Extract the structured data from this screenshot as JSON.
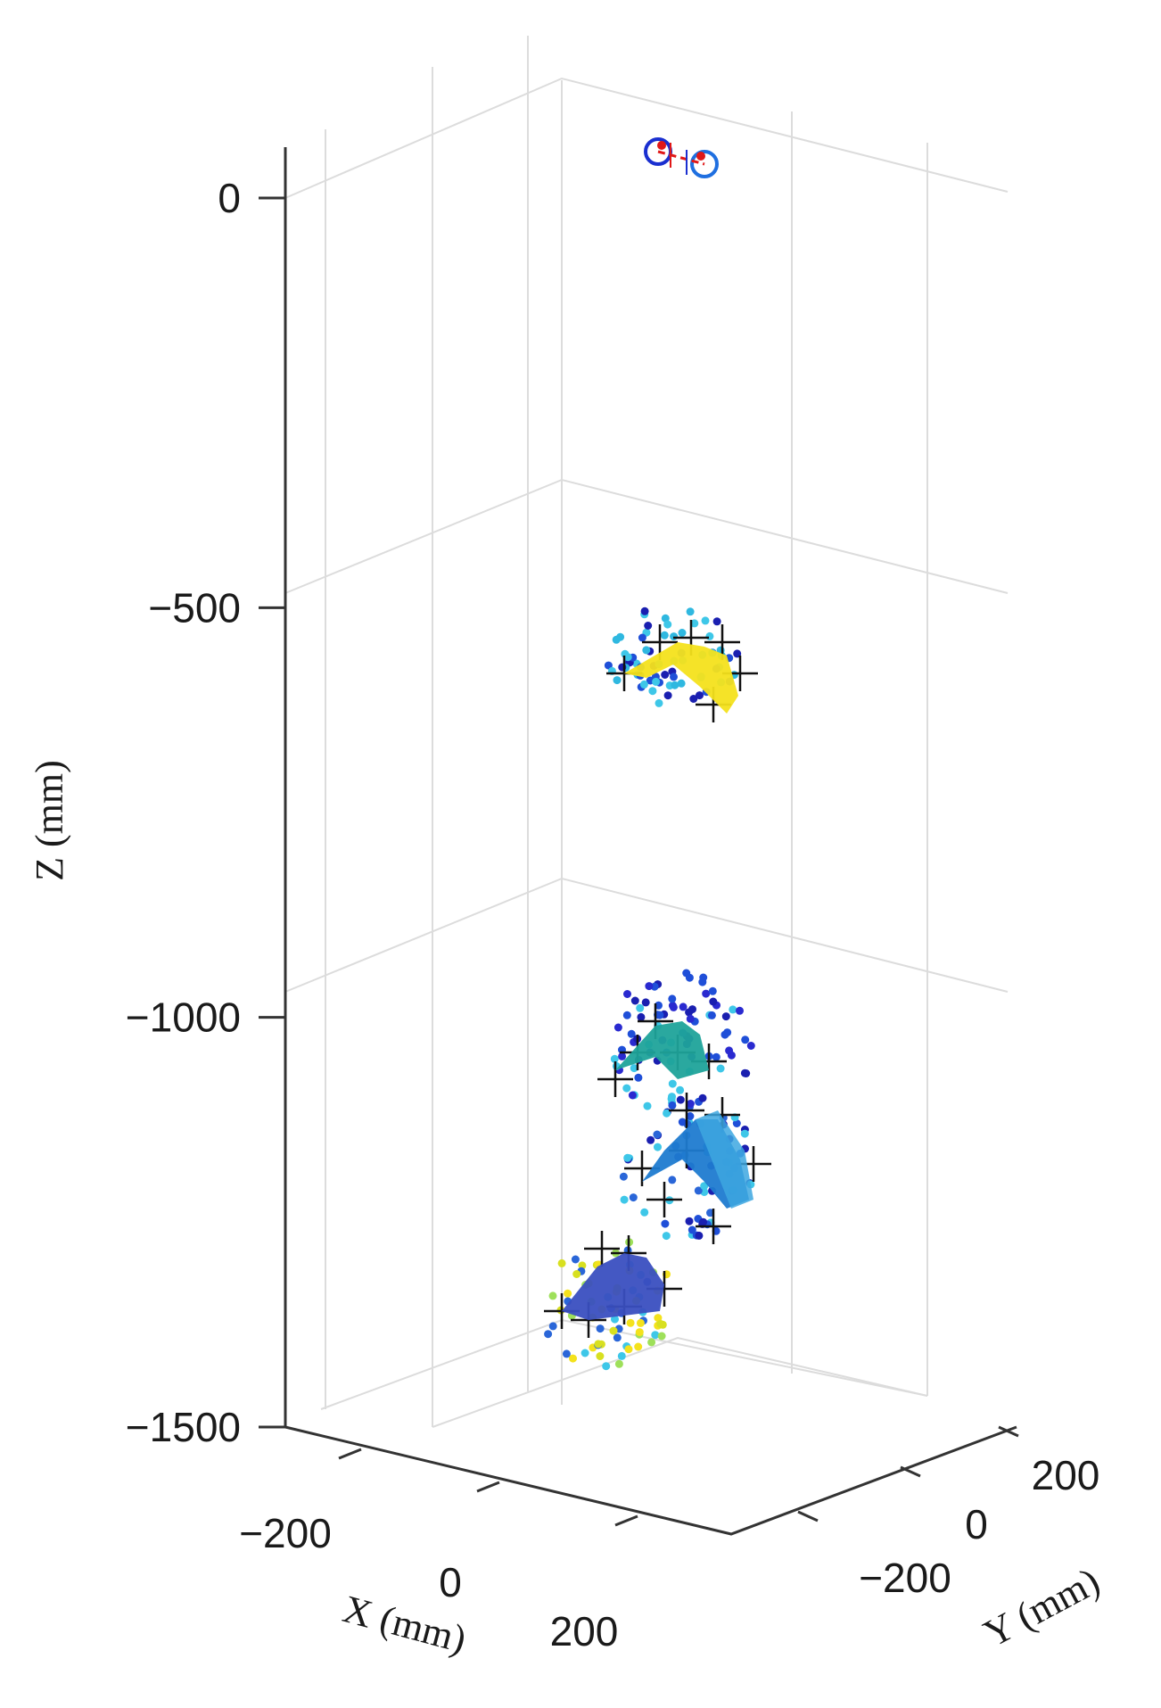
{
  "chart_data": {
    "type": "scatter",
    "projection": "3d",
    "grid": true,
    "axes": {
      "x": {
        "label": "X (mm)",
        "ticks": [
          -200,
          0,
          200
        ],
        "tick_labels": [
          "−200",
          "0",
          "200"
        ]
      },
      "y": {
        "label": "Y (mm)",
        "ticks": [
          -200,
          0,
          200
        ],
        "tick_labels": [
          "−200",
          "0",
          "200"
        ]
      },
      "z": {
        "label": "Z (mm)",
        "ticks": [
          0,
          -500,
          -1000,
          -1500
        ],
        "tick_labels": [
          "0",
          "−500",
          "−1000",
          "−1500"
        ],
        "range": [
          -1500,
          0
        ]
      }
    },
    "groups": [
      {
        "z_level": 0,
        "description_markers": [
          "blue circles",
          "red dots"
        ],
        "color": "#1f4fd8"
      },
      {
        "z_level": -550,
        "colors": [
          "#f4e21c",
          "#31b5e0",
          "#1d4fd6"
        ]
      },
      {
        "z_level": -1100,
        "colors": [
          "#1fa39a",
          "#1a1fb0",
          "#1f7bd0",
          "#43c0e8"
        ]
      },
      {
        "z_level": -1400,
        "colors": [
          "#3a4fc0",
          "#f2e21a",
          "#9ee05a",
          "#2a66d8"
        ]
      }
    ],
    "colors": {
      "blue": "#1f4fd8",
      "navy": "#1a1fb0",
      "cyan": "#3ec7e8",
      "yellow": "#f4e21c",
      "teal": "#1fa39a",
      "green": "#9ee05a",
      "red": "#e01818",
      "grid": "#d9d9d9",
      "axis": "#333333"
    }
  }
}
